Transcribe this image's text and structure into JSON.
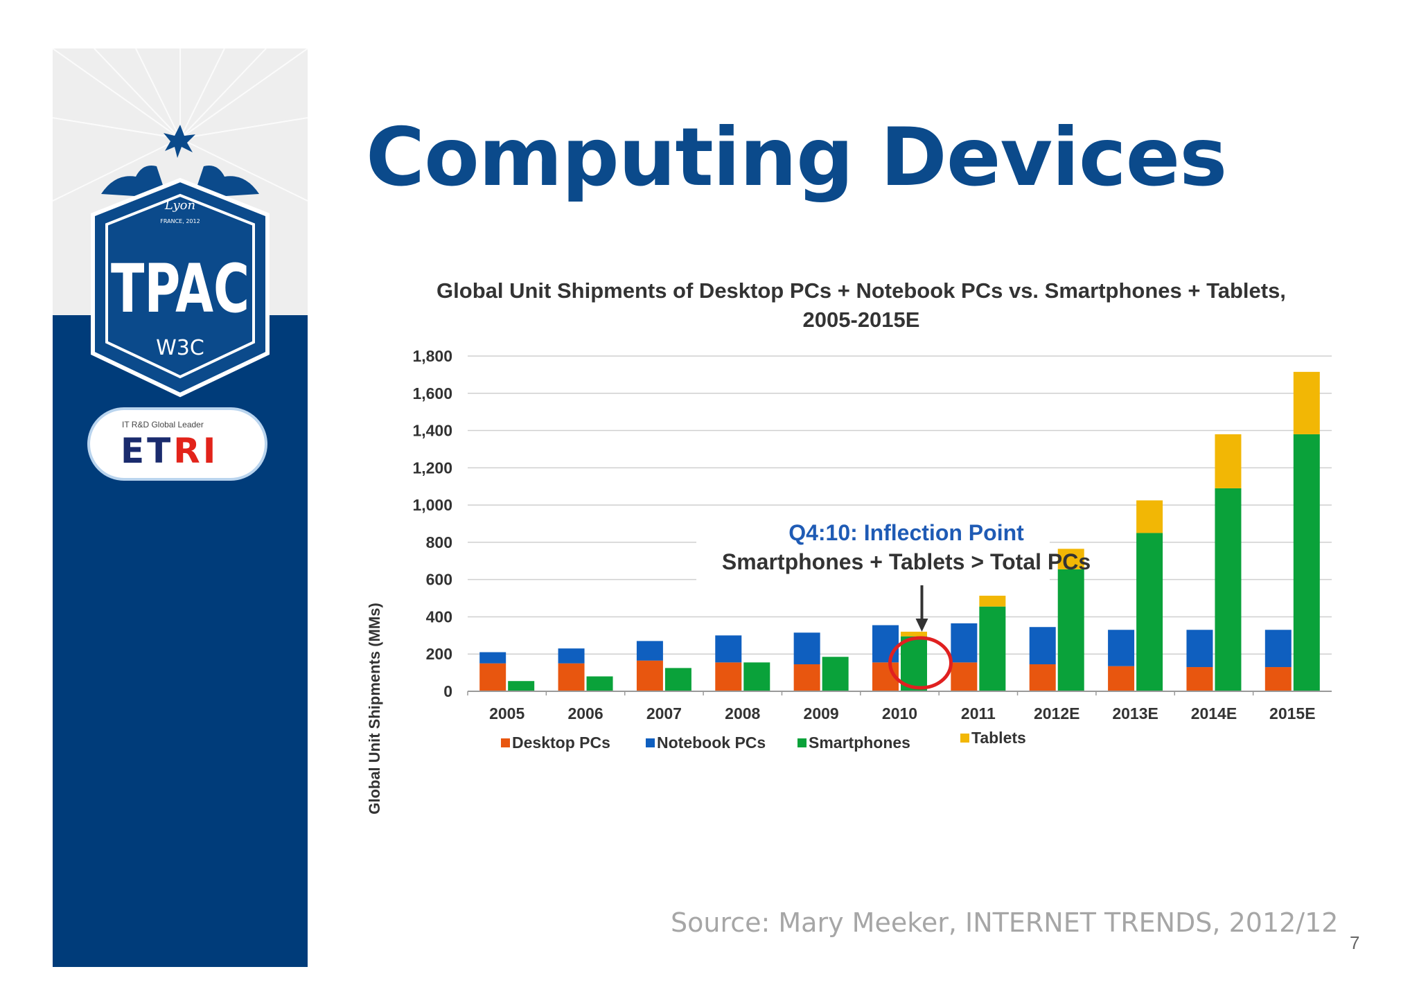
{
  "slide": {
    "title": "Computing Devices",
    "source": "Source: Mary Meeker, INTERNET TRENDS, 2012/12",
    "page_number": "7"
  },
  "sidebar": {
    "tpac_text": "TPAC",
    "lyon_text": "Lyon",
    "france_text": "FRANCE, 2012",
    "w3c_text": "W3C",
    "etri_tagline": "IT R&D Global Leader",
    "etri_prefix": "ET",
    "etri_suffix": "RI"
  },
  "colors": {
    "title": "#0b4a8b",
    "sidebar": "#003c7a",
    "desktop": "#e8560f",
    "notebook": "#0f5fbf",
    "smartphone": "#0aa23a",
    "tablet": "#f2b705",
    "annotation_blue": "#1f5bb5",
    "circle": "#e02020"
  },
  "chart_data": {
    "type": "bar",
    "title_line1": "Global Unit Shipments of Desktop PCs + Notebook PCs vs. Smartphones + Tablets,",
    "title_line2": "2005-2015E",
    "ylabel": "Global Unit Shipments (MMs)",
    "xlabel": "",
    "ylim": [
      0,
      1800
    ],
    "yticks": [
      0,
      200,
      400,
      600,
      800,
      1000,
      1200,
      1400,
      1600,
      1800
    ],
    "ytick_labels": [
      "0",
      "200",
      "400",
      "600",
      "800",
      "1,000",
      "1,200",
      "1,400",
      "1,600",
      "1,800"
    ],
    "grid": true,
    "legend_position": "bottom",
    "categories": [
      "2005",
      "2006",
      "2007",
      "2008",
      "2009",
      "2010",
      "2011",
      "2012E",
      "2013E",
      "2014E",
      "2015E"
    ],
    "stacks": [
      {
        "group": "PCs",
        "series": [
          "Desktop PCs",
          "Notebook PCs"
        ]
      },
      {
        "group": "Mobile",
        "series": [
          "Smartphones",
          "Tablets"
        ]
      }
    ],
    "series": [
      {
        "name": "Desktop PCs",
        "values": [
          150,
          150,
          165,
          155,
          145,
          155,
          155,
          145,
          135,
          130,
          130
        ]
      },
      {
        "name": "Notebook PCs",
        "values": [
          60,
          80,
          105,
          145,
          170,
          200,
          210,
          200,
          195,
          200,
          200
        ]
      },
      {
        "name": "Smartphones",
        "values": [
          55,
          80,
          125,
          155,
          185,
          295,
          455,
          655,
          850,
          1090,
          1380
        ]
      },
      {
        "name": "Tablets",
        "values": [
          0,
          0,
          0,
          0,
          0,
          25,
          75,
          110,
          175,
          290,
          335
        ]
      }
    ],
    "annotation": {
      "line1": "Q4:10: Inflection Point",
      "line2": "Smartphones + Tablets > Total PCs",
      "target_category": "2010"
    }
  }
}
